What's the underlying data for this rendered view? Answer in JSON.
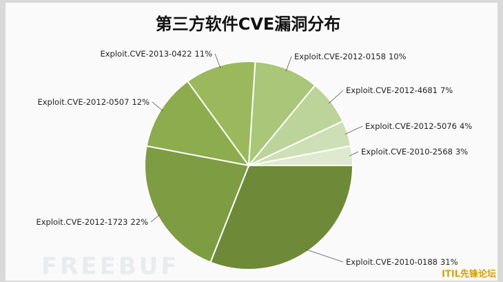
{
  "chart_data": {
    "type": "pie",
    "title": "第三方软件CVE漏洞分布",
    "categories": [
      "Exploit.CVE-2010-0188",
      "Exploit.CVE-2012-1723",
      "Exploit.CVE-2012-0507",
      "Exploit.CVE-2013-0422",
      "Exploit.CVE-2012-0158",
      "Exploit.CVE-2012-4681",
      "Exploit.CVE-2012-5076",
      "Exploit.CVE-2010-2568"
    ],
    "values": [
      31,
      22,
      12,
      11,
      10,
      7,
      4,
      3
    ],
    "value_labels": [
      "31%",
      "22%",
      "12%",
      "11%",
      "10%",
      "7%",
      "4%",
      "3%"
    ],
    "colors": [
      "#6e8a38",
      "#7e9c42",
      "#8dac4d",
      "#9bb95c",
      "#aac679",
      "#bcd49a",
      "#cde0b5",
      "#dee9ce"
    ],
    "watermarks": [
      "FREEBUF",
      "ITIL先锋论坛"
    ]
  }
}
